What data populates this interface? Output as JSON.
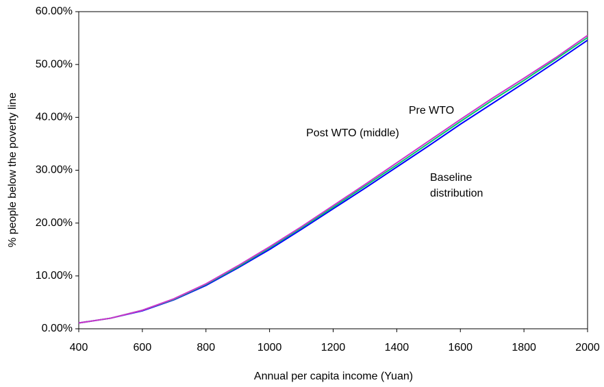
{
  "chart_data": {
    "type": "line",
    "x_label": "Annual per capita income (Yuan)",
    "y_label": "% people below the poverty line",
    "x": [
      400,
      500,
      600,
      700,
      800,
      900,
      1000,
      1100,
      1200,
      1300,
      1400,
      1500,
      1600,
      1700,
      1800,
      1900,
      2000
    ],
    "series": [
      {
        "name": "Baseline distribution",
        "color": "#0000ff",
        "values": [
          1.1,
          2.0,
          3.4,
          5.5,
          8.2,
          11.5,
          15.0,
          18.8,
          22.7,
          26.6,
          30.6,
          34.6,
          38.7,
          42.6,
          46.5,
          50.5,
          54.6
        ]
      },
      {
        "name": "Post WTO (middle)",
        "color": "#00cc66",
        "values": [
          1.1,
          2.0,
          3.5,
          5.6,
          8.4,
          11.7,
          15.3,
          19.1,
          23.0,
          27.0,
          31.0,
          35.1,
          39.2,
          43.2,
          47.0,
          51.0,
          55.1
        ]
      },
      {
        "name": "Pre WTO",
        "color": "#cc33cc",
        "values": [
          1.1,
          2.0,
          3.5,
          5.7,
          8.5,
          11.9,
          15.5,
          19.3,
          23.3,
          27.3,
          31.4,
          35.5,
          39.6,
          43.6,
          47.4,
          51.3,
          55.5
        ]
      }
    ],
    "xlim": [
      400,
      2000
    ],
    "xticks": [
      400,
      600,
      800,
      1000,
      1200,
      1400,
      1600,
      1800,
      2000
    ],
    "ylim": [
      0,
      60
    ],
    "yticks": [
      {
        "value": 0,
        "label": "0.00%"
      },
      {
        "value": 10,
        "label": "10.00%"
      },
      {
        "value": 20,
        "label": "20.00%"
      },
      {
        "value": 30,
        "label": "30.00%"
      },
      {
        "value": 40,
        "label": "40.00%"
      },
      {
        "value": 50,
        "label": "50.00%"
      },
      {
        "value": 60,
        "label": "60.00%"
      }
    ],
    "grid": false
  }
}
